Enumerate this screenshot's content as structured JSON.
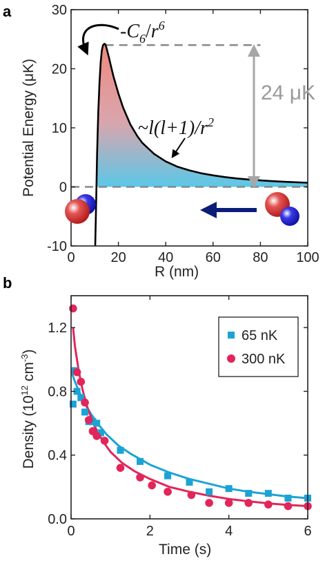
{
  "chart_data": [
    {
      "panel_label": "a",
      "type": "line",
      "xlabel": "R (nm)",
      "ylabel": "Potential Energy (μK)",
      "xlim": [
        0,
        100
      ],
      "ylim": [
        -10,
        30
      ],
      "xticks": [
        "0",
        "20",
        "40",
        "60",
        "80",
        "100"
      ],
      "yticks": [
        "-10",
        "0",
        "10",
        "20",
        "30"
      ],
      "series": [
        {
          "x": [
            10.2,
            10.6,
            11.0,
            11.5,
            12.0,
            12.5,
            13.0,
            13.5,
            14.0,
            14.3,
            14.6,
            15,
            16,
            17,
            18,
            20,
            22,
            25,
            28,
            30,
            35,
            40,
            45,
            50,
            55,
            60,
            65,
            70,
            75,
            80,
            85,
            90,
            95,
            100
          ],
          "y": [
            -10,
            -2.3,
            5.6,
            12.6,
            17.7,
            21.1,
            23.1,
            24.0,
            24.2,
            24.2,
            24.0,
            23.5,
            21.9,
            20.2,
            18.6,
            15.8,
            13.4,
            10.6,
            8.6,
            7.5,
            5.6,
            4.3,
            3.4,
            2.8,
            2.3,
            1.95,
            1.66,
            1.43,
            1.25,
            1.1,
            0.97,
            0.87,
            0.78,
            0.7
          ]
        }
      ],
      "annotations": {
        "vdw_formula": "-C₆/r⁶",
        "vdw_formula_parts": {
          "prefix": "-",
          "symbol": "C",
          "sub": "6",
          "slash": "/",
          "base": "r",
          "sup": "6"
        },
        "centrifugal_formula_parts": {
          "prefix": "~",
          "main": "l(l+1)/r",
          "sup": "2"
        },
        "barrier_label": "24 μK",
        "barrier_height": 24
      },
      "colors": {
        "curve": "#000000",
        "fill_top": "#ef8a7f",
        "fill_bottom": "#5bc8e8",
        "dashed": "#888888",
        "arrow_grey": "#a6a6a6",
        "arrow_navy": "#0b1d7a",
        "red_sphere": "#d42a2a",
        "blue_sphere": "#2a2ad4"
      }
    },
    {
      "panel_label": "b",
      "type": "scatter",
      "xlabel": "Time (s)",
      "ylabel_parts": {
        "prefix": "Density (10",
        "sup1": "12",
        "mid": " cm",
        "sup2": "-3",
        "suffix": ")"
      },
      "xlim": [
        0,
        6
      ],
      "ylim": [
        0,
        1.4
      ],
      "xticks": [
        "0",
        "2",
        "4",
        "6"
      ],
      "yticks": [
        "0.0",
        "0.4",
        "0.8",
        "1.2"
      ],
      "legend_position": "top-right",
      "series": [
        {
          "name": "65 nK",
          "color": "#1ba3d5",
          "marker": "square",
          "x": [
            0.05,
            0.1,
            0.15,
            0.25,
            0.35,
            0.45,
            0.55,
            0.65,
            0.75,
            1.25,
            1.75,
            2.45,
            3.0,
            3.5,
            4.0,
            4.5,
            5.0,
            5.5,
            6.0
          ],
          "y": [
            0.72,
            0.93,
            0.8,
            0.76,
            0.67,
            0.61,
            0.61,
            0.6,
            0.54,
            0.43,
            0.36,
            0.27,
            0.23,
            0.17,
            0.19,
            0.16,
            0.16,
            0.13,
            0.13
          ],
          "fit_x": [
            0.0,
            0.1,
            0.2,
            0.3,
            0.4,
            0.5,
            0.7,
            0.9,
            1.2,
            1.5,
            2.0,
            2.5,
            3.0,
            3.5,
            4.0,
            4.5,
            5.0,
            5.5,
            6.0
          ],
          "fit_y": [
            0.93,
            0.86,
            0.8,
            0.75,
            0.7,
            0.66,
            0.59,
            0.53,
            0.46,
            0.41,
            0.34,
            0.29,
            0.25,
            0.22,
            0.19,
            0.17,
            0.155,
            0.14,
            0.13
          ]
        },
        {
          "name": "300 nK",
          "color": "#e2255a",
          "marker": "circle",
          "x": [
            0.05,
            0.15,
            0.25,
            0.35,
            0.45,
            0.55,
            0.65,
            0.85,
            1.25,
            1.75,
            2.05,
            2.45,
            3.05,
            3.5,
            4.0,
            4.5,
            5.0,
            5.5,
            6.0
          ],
          "y": [
            1.32,
            0.92,
            0.86,
            0.73,
            0.62,
            0.55,
            0.52,
            0.49,
            0.32,
            0.26,
            0.21,
            0.17,
            0.15,
            0.1,
            0.1,
            0.1,
            0.09,
            0.08,
            0.08
          ],
          "fit_x": [
            0.05,
            0.1,
            0.2,
            0.3,
            0.4,
            0.5,
            0.6,
            0.8,
            1.0,
            1.3,
            1.6,
            2.0,
            2.5,
            3.0,
            3.5,
            4.0,
            4.5,
            5.0,
            5.5,
            6.0
          ],
          "fit_y": [
            1.2,
            1.08,
            0.92,
            0.8,
            0.71,
            0.64,
            0.58,
            0.49,
            0.42,
            0.35,
            0.3,
            0.25,
            0.2,
            0.17,
            0.145,
            0.125,
            0.11,
            0.097,
            0.087,
            0.08
          ]
        }
      ]
    }
  ]
}
